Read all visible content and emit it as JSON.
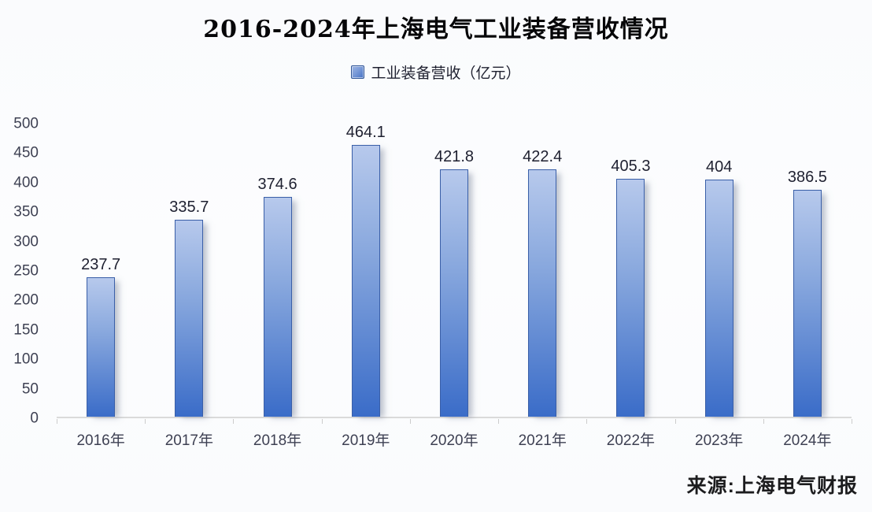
{
  "page": {
    "background": "#fbfcfe",
    "source_note": "来源:上海电气财报"
  },
  "chart_data": {
    "type": "bar",
    "title": "2016-2024年上海电气工业装备营收情况",
    "legend": [
      {
        "label": "工业装备营收（亿元）"
      }
    ],
    "legend_position": "top-center",
    "categories": [
      "2016年",
      "2017年",
      "2018年",
      "2019年",
      "2020年",
      "2021年",
      "2022年",
      "2023年",
      "2024年"
    ],
    "series": [
      {
        "name": "工业装备营收（亿元）",
        "values": [
          237.7,
          335.7,
          374.6,
          464.1,
          421.8,
          422.4,
          405.3,
          404,
          386.5
        ]
      }
    ],
    "data_labels": [
      "237.7",
      "335.7",
      "374.6",
      "464.1",
      "421.8",
      "422.4",
      "405.3",
      "404",
      "386.5"
    ],
    "xlabel": "",
    "ylabel": "",
    "ylim": [
      0,
      500
    ],
    "yticks": [
      0,
      50,
      100,
      150,
      200,
      250,
      300,
      350,
      400,
      450,
      500
    ],
    "grid": false,
    "colors": {
      "bar_top": "#b7c9ec",
      "bar_mid": "#8aa9de",
      "bar_bottom": "#3a6cc8",
      "bar_border": "#3a5fa8",
      "axis_line": "#dadada",
      "axis_text": "#3e4153",
      "label_text": "#1e2030",
      "legend_swatch": "#4472c4"
    }
  }
}
